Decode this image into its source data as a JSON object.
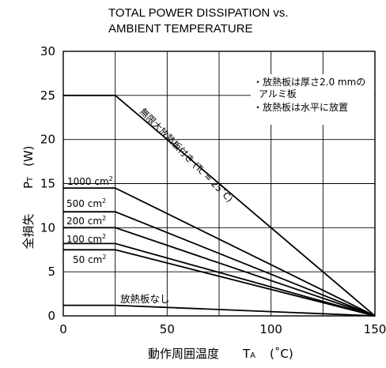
{
  "chart_data": {
    "type": "line",
    "title_lines": [
      "TOTAL POWER DISSIPATION vs.",
      "AMBIENT TEMPERATURE"
    ],
    "xlabel": "動作周囲温度",
    "xsymbol": "T",
    "xsymbol_sub": "A",
    "xunit": "(˚C)",
    "ylabel": "全損失",
    "ysymbol": "P",
    "ysymbol_sub": "T",
    "yunit": "(W)",
    "xlim": [
      0,
      150
    ],
    "ylim": [
      0,
      30
    ],
    "xticks": [
      0,
      50,
      100,
      150
    ],
    "yticks": [
      0,
      5,
      10,
      15,
      20,
      25,
      30
    ],
    "grid": true,
    "notes": [
      "・放熱板は厚さ2.0 mmの",
      "アルミ板",
      "・放熱板は水平に放置"
    ],
    "series": [
      {
        "label": "無限大放熱板付き (Tc = 25˚C)",
        "x": [
          0,
          25,
          150
        ],
        "y": [
          25,
          25,
          0
        ]
      },
      {
        "label": "1000 cm²",
        "x": [
          0,
          25,
          150
        ],
        "y": [
          14.5,
          14.5,
          0
        ]
      },
      {
        "label": "500 cm²",
        "x": [
          0,
          25,
          150
        ],
        "y": [
          11.8,
          11.8,
          0
        ]
      },
      {
        "label": "200 cm²",
        "x": [
          0,
          25,
          150
        ],
        "y": [
          10,
          10,
          0
        ]
      },
      {
        "label": "100 cm²",
        "x": [
          0,
          25,
          150
        ],
        "y": [
          8.2,
          8.2,
          0
        ]
      },
      {
        "label": "50 cm²",
        "x": [
          0,
          25,
          150
        ],
        "y": [
          7.5,
          7.5,
          0
        ]
      },
      {
        "label": "放熱板なし",
        "x": [
          0,
          25,
          150
        ],
        "y": [
          1.2,
          1.2,
          0
        ]
      }
    ]
  }
}
